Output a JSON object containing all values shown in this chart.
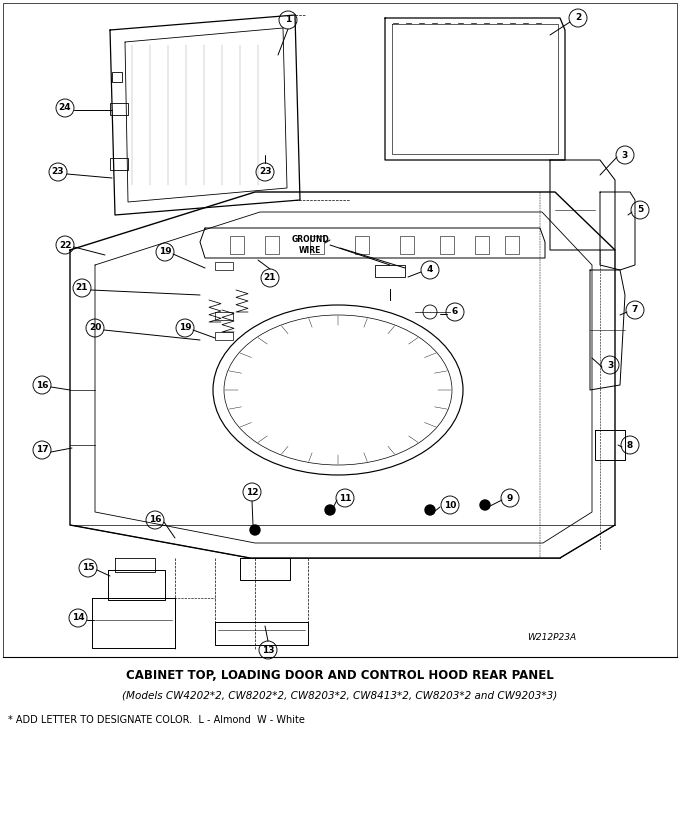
{
  "title1": "CABINET TOP, LOADING DOOR AND CONTROL HOOD REAR PANEL",
  "title2": "(Models CW4202*2, CW8202*2, CW8203*2, CW8413*2, CW8203*2 and CW9203*3)",
  "footnote": "* ADD LETTER TO DESIGNATE COLOR.  L - Almond  W - White",
  "part_number": "W212P23A",
  "bg": "#ffffff",
  "lc": "#000000",
  "figsize": [
    6.8,
    8.38
  ],
  "dpi": 100,
  "title1_fs": 8.5,
  "title2_fs": 7.5,
  "fn_fs": 7.0,
  "pn_fs": 6.5,
  "label_fs": 6.5,
  "label_r": 9,
  "lw": 0.7
}
